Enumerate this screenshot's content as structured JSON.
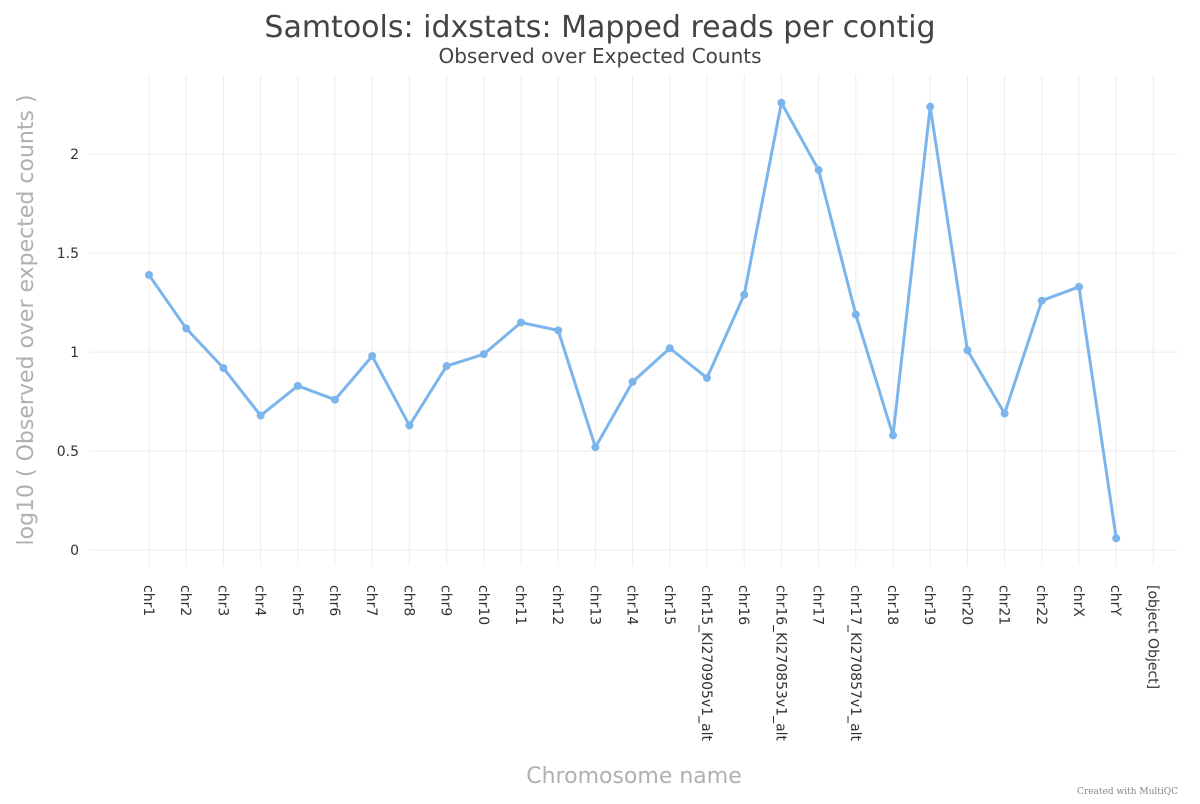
{
  "chart_data": {
    "type": "line",
    "title": "Samtools: idxstats: Mapped reads per contig",
    "subtitle": "Observed over Expected Counts",
    "xlabel": "Chromosome name",
    "ylabel": "log10 ( Observed over expected counts )",
    "ylim": [
      -0.08,
      2.4
    ],
    "yticks": [
      {
        "value": 0,
        "label": "0"
      },
      {
        "value": 0.5,
        "label": "0.5"
      },
      {
        "value": 1,
        "label": "1"
      },
      {
        "value": 1.5,
        "label": "1.5"
      },
      {
        "value": 2,
        "label": "2"
      }
    ],
    "grid": true,
    "categories": [
      "chr1",
      "chr2",
      "chr3",
      "chr4",
      "chr5",
      "chr6",
      "chr7",
      "chr8",
      "chr9",
      "chr10",
      "chr11",
      "chr12",
      "chr13",
      "chr14",
      "chr15",
      "chr15_KI270905v1_alt",
      "chr16",
      "chr16_KI270853v1_alt",
      "chr17",
      "chr17_KI270857v1_alt",
      "chr18",
      "chr19",
      "chr20",
      "chr21",
      "chr22",
      "chrX",
      "chrY",
      "[object Object]"
    ],
    "series": [
      {
        "color": "#7cb5ec",
        "values": [
          1.39,
          1.12,
          0.92,
          0.68,
          0.83,
          0.76,
          0.98,
          0.63,
          0.93,
          0.99,
          1.15,
          1.11,
          0.52,
          0.85,
          1.02,
          0.87,
          1.29,
          2.26,
          1.92,
          1.19,
          0.58,
          2.24,
          1.01,
          0.69,
          1.26,
          1.33,
          0.06,
          null
        ]
      }
    ],
    "credit": "Created with MultiQC"
  }
}
